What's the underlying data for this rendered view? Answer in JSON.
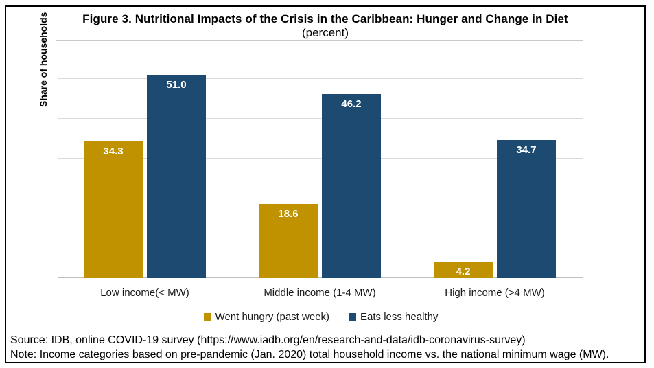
{
  "title": "Figure 3. Nutritional Impacts of the Crisis in the Caribbean: Hunger and Change in Diet",
  "subtitle": "(percent)",
  "source": "Source: IDB, online COVID-19 survey (https://www.iadb.org/en/research-and-data/idb-coronavirus-survey)",
  "note": "Note: Income categories based on pre-pandemic (Jan. 2020) total household income vs. the national minimum wage (MW).",
  "chart_data": {
    "type": "bar",
    "title": "Figure 3. Nutritional Impacts of the Crisis in the Caribbean: Hunger and Change in Diet",
    "subtitle": "(percent)",
    "xlabel": "",
    "ylabel": "Share of households",
    "categories": [
      "Low income(< MW)",
      "Middle income (1-4 MW)",
      "High income (>4 MW)"
    ],
    "series": [
      {
        "name": "Went hungry (past week)",
        "color": "#C09200",
        "values": [
          34.3,
          18.6,
          4.2
        ]
      },
      {
        "name": "Eats less healthy",
        "color": "#1C4A70",
        "values": [
          51.0,
          46.2,
          34.7
        ]
      }
    ],
    "ylim": [
      0,
      53
    ],
    "gridline_values": [
      0,
      10,
      20,
      30,
      40,
      50
    ],
    "grid": true,
    "value_labels": true,
    "value_label_decimals": 1,
    "legend_position": "bottom",
    "y_tick_labels_shown": false
  },
  "colors": {
    "grid": "#d9d9d9",
    "axis_baseline": "#bfbfbf",
    "title_underline": "#c9c9c9",
    "figure_border": "#000000",
    "value_label_text": "#ffffff"
  }
}
